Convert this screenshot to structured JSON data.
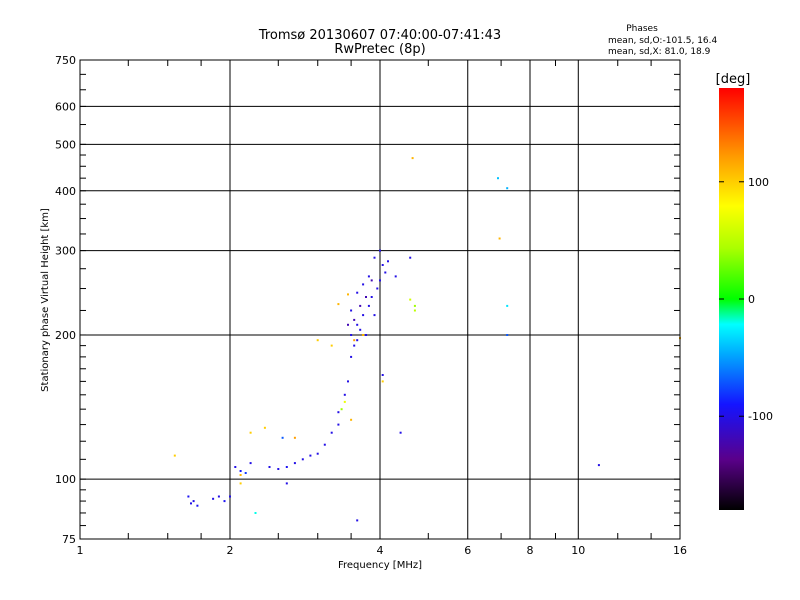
{
  "chart_data": {
    "type": "scatter",
    "title": "Tromsø 20130607 07:40:00-07:41:43",
    "subtitle": "RwPretec (8p)",
    "xlabel": "Frequency [MHz]",
    "ylabel": "Stationary phase Virtual Height [km]",
    "x_scale": "log",
    "y_scale": "log",
    "xlim": [
      1,
      16
    ],
    "ylim": [
      75,
      750
    ],
    "x_ticks": [
      1,
      2,
      4,
      6,
      8,
      10,
      16
    ],
    "y_ticks": [
      75,
      100,
      200,
      300,
      400,
      500,
      600,
      750
    ],
    "grid": true,
    "phase_info": {
      "title": "Phases",
      "line1": "mean, sd,O:-101.5, 16.4",
      "line2": "mean, sd,X:  81.0, 18.9"
    },
    "colorbar": {
      "label": "[deg]",
      "range": [
        -180,
        180
      ],
      "ticks": [
        100,
        0,
        -100
      ]
    },
    "series": [
      {
        "points": [
          [
            1.65,
            92,
            -95
          ],
          [
            1.67,
            89,
            -100
          ],
          [
            1.69,
            90,
            -100
          ],
          [
            1.72,
            88,
            -95
          ],
          [
            1.85,
            91,
            -100
          ],
          [
            1.9,
            92,
            -100
          ],
          [
            1.95,
            90,
            -95
          ],
          [
            2.0,
            92,
            -100
          ],
          [
            2.05,
            106,
            -100
          ],
          [
            2.1,
            104,
            -90
          ],
          [
            2.15,
            103,
            -80
          ],
          [
            2.2,
            108,
            -100
          ],
          [
            2.4,
            106,
            -100
          ],
          [
            2.5,
            105,
            -100
          ],
          [
            2.6,
            106,
            -95
          ],
          [
            2.7,
            108,
            -100
          ],
          [
            2.8,
            110,
            -100
          ],
          [
            2.9,
            112,
            -100
          ],
          [
            3.0,
            113,
            -100
          ],
          [
            2.55,
            122,
            -70
          ],
          [
            3.1,
            118,
            -100
          ],
          [
            3.2,
            125,
            -100
          ],
          [
            3.3,
            130,
            -100
          ],
          [
            3.3,
            138,
            -100
          ],
          [
            3.4,
            150,
            -100
          ],
          [
            3.45,
            160,
            -100
          ],
          [
            3.5,
            180,
            -100
          ],
          [
            3.5,
            200,
            -100
          ],
          [
            3.55,
            190,
            -100
          ],
          [
            3.6,
            195,
            -100
          ],
          [
            3.6,
            210,
            -100
          ],
          [
            3.65,
            205,
            -100
          ],
          [
            3.7,
            220,
            -100
          ],
          [
            3.75,
            200,
            -100
          ],
          [
            3.8,
            230,
            -100
          ],
          [
            3.85,
            240,
            -100
          ],
          [
            3.9,
            220,
            -100
          ],
          [
            3.95,
            250,
            -100
          ],
          [
            4.0,
            260,
            -100
          ],
          [
            4.05,
            280,
            -100
          ],
          [
            3.5,
            225,
            -100
          ],
          [
            3.6,
            245,
            -100
          ],
          [
            3.7,
            255,
            -100
          ],
          [
            3.8,
            265,
            -100
          ],
          [
            3.9,
            290,
            -100
          ],
          [
            4.0,
            300,
            -100
          ],
          [
            4.1,
            270,
            -100
          ],
          [
            4.15,
            285,
            -100
          ],
          [
            4.3,
            265,
            -100
          ],
          [
            4.6,
            290,
            -100
          ],
          [
            4.05,
            165,
            -100
          ],
          [
            4.4,
            125,
            -100
          ],
          [
            3.6,
            82,
            -100
          ],
          [
            2.6,
            98,
            -100
          ],
          [
            11.0,
            107,
            -100
          ],
          [
            7.2,
            200,
            -70
          ],
          [
            7.2,
            230,
            -30
          ],
          [
            7.2,
            405,
            -45
          ],
          [
            6.9,
            425,
            -40
          ],
          [
            3.45,
            210,
            -120
          ],
          [
            3.55,
            215,
            -120
          ],
          [
            3.65,
            230,
            -120
          ],
          [
            3.75,
            240,
            -120
          ],
          [
            3.85,
            260,
            -120
          ]
        ]
      },
      {
        "points": [
          [
            2.1,
            98,
            100
          ],
          [
            2.1,
            102,
            110
          ],
          [
            2.2,
            125,
            100
          ],
          [
            2.35,
            128,
            100
          ],
          [
            2.7,
            122,
            120
          ],
          [
            1.55,
            112,
            100
          ],
          [
            3.5,
            133,
            110
          ],
          [
            3.35,
            140,
            40
          ],
          [
            3.4,
            145,
            70
          ],
          [
            3.0,
            195,
            100
          ],
          [
            3.3,
            232,
            110
          ],
          [
            3.45,
            243,
            110
          ],
          [
            4.05,
            160,
            100
          ],
          [
            4.7,
            225,
            50
          ],
          [
            4.7,
            230,
            40
          ],
          [
            4.6,
            237,
            60
          ],
          [
            4.65,
            468,
            110
          ],
          [
            6.95,
            318,
            110
          ],
          [
            16.0,
            197,
            110
          ],
          [
            3.2,
            190,
            100
          ],
          [
            2.25,
            85,
            -20
          ],
          [
            3.55,
            195,
            120
          ],
          [
            3.7,
            200,
            110
          ]
        ]
      }
    ]
  }
}
